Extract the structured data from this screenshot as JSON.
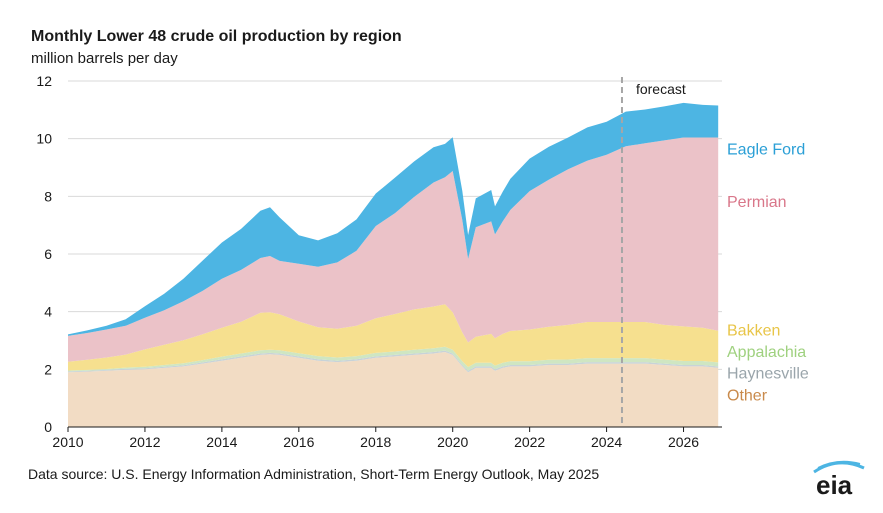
{
  "chart_data": {
    "type": "area",
    "title": "Monthly Lower 48 crude oil production by region",
    "subtitle": "million barrels per day",
    "xlabel": "",
    "ylabel": "",
    "xlim": [
      2010,
      2027
    ],
    "ylim": [
      0,
      12
    ],
    "x_ticks": [
      "2010",
      "2012",
      "2014",
      "2016",
      "2018",
      "2020",
      "2022",
      "2024",
      "2026"
    ],
    "y_ticks": [
      "0",
      "2",
      "4",
      "6",
      "8",
      "10",
      "12"
    ],
    "grid": "horizontal",
    "stacked": true,
    "x": [
      2010.0,
      2010.5,
      2011.0,
      2011.5,
      2012.0,
      2012.5,
      2013.0,
      2013.5,
      2014.0,
      2014.5,
      2015.0,
      2015.25,
      2015.5,
      2016.0,
      2016.5,
      2017.0,
      2017.5,
      2018.0,
      2018.5,
      2019.0,
      2019.5,
      2019.8,
      2020.0,
      2020.25,
      2020.4,
      2020.6,
      2021.0,
      2021.1,
      2021.3,
      2021.5,
      2022.0,
      2022.5,
      2023.0,
      2023.5,
      2024.0,
      2024.5,
      2025.0,
      2025.5,
      2026.0,
      2026.5,
      2026.9
    ],
    "series": [
      {
        "name": "Other",
        "color": "#f2dcc4",
        "values": [
          1.9,
          1.92,
          1.95,
          1.98,
          2.0,
          2.05,
          2.1,
          2.2,
          2.3,
          2.4,
          2.5,
          2.52,
          2.5,
          2.4,
          2.3,
          2.25,
          2.3,
          2.4,
          2.45,
          2.5,
          2.55,
          2.6,
          2.5,
          2.1,
          1.9,
          2.05,
          2.05,
          1.95,
          2.05,
          2.1,
          2.1,
          2.15,
          2.15,
          2.2,
          2.2,
          2.2,
          2.2,
          2.15,
          2.1,
          2.1,
          2.05
        ]
      },
      {
        "name": "Haynesville",
        "color": "#c8d3d8",
        "values": [
          0.03,
          0.03,
          0.03,
          0.04,
          0.04,
          0.04,
          0.04,
          0.04,
          0.05,
          0.05,
          0.05,
          0.05,
          0.05,
          0.05,
          0.05,
          0.05,
          0.05,
          0.05,
          0.05,
          0.05,
          0.05,
          0.05,
          0.05,
          0.05,
          0.05,
          0.05,
          0.05,
          0.05,
          0.05,
          0.05,
          0.05,
          0.05,
          0.05,
          0.05,
          0.05,
          0.05,
          0.05,
          0.05,
          0.05,
          0.05,
          0.05
        ]
      },
      {
        "name": "Appalachia",
        "color": "#cfe6c2",
        "values": [
          0.03,
          0.03,
          0.03,
          0.04,
          0.05,
          0.06,
          0.07,
          0.08,
          0.09,
          0.1,
          0.11,
          0.11,
          0.11,
          0.11,
          0.11,
          0.11,
          0.11,
          0.12,
          0.12,
          0.13,
          0.13,
          0.13,
          0.13,
          0.13,
          0.13,
          0.13,
          0.13,
          0.13,
          0.13,
          0.13,
          0.13,
          0.13,
          0.14,
          0.14,
          0.14,
          0.14,
          0.14,
          0.14,
          0.14,
          0.14,
          0.14
        ]
      },
      {
        "name": "Bakken",
        "color": "#f6e08f",
        "values": [
          0.3,
          0.35,
          0.4,
          0.45,
          0.6,
          0.7,
          0.8,
          0.9,
          1.0,
          1.1,
          1.3,
          1.3,
          1.25,
          1.1,
          1.0,
          1.0,
          1.05,
          1.2,
          1.3,
          1.4,
          1.45,
          1.48,
          1.3,
          1.0,
          0.85,
          0.9,
          1.0,
          0.95,
          1.0,
          1.05,
          1.1,
          1.15,
          1.2,
          1.25,
          1.25,
          1.25,
          1.25,
          1.2,
          1.2,
          1.15,
          1.1
        ]
      },
      {
        "name": "Permian",
        "color": "#ebc2c8",
        "values": [
          0.9,
          0.93,
          0.97,
          1.0,
          1.1,
          1.2,
          1.35,
          1.5,
          1.7,
          1.8,
          1.9,
          1.95,
          1.85,
          2.0,
          2.1,
          2.3,
          2.6,
          3.2,
          3.5,
          3.9,
          4.3,
          4.4,
          4.9,
          3.9,
          2.9,
          3.8,
          3.9,
          3.6,
          3.9,
          4.2,
          4.8,
          5.1,
          5.4,
          5.6,
          5.8,
          6.1,
          6.2,
          6.4,
          6.55,
          6.6,
          6.7
        ]
      },
      {
        "name": "Eagle Ford",
        "color": "#4db5e3",
        "values": [
          0.05,
          0.09,
          0.13,
          0.23,
          0.4,
          0.57,
          0.78,
          1.05,
          1.26,
          1.42,
          1.64,
          1.69,
          1.51,
          0.99,
          0.91,
          1.01,
          1.09,
          1.13,
          1.23,
          1.23,
          1.22,
          1.16,
          1.17,
          1.01,
          0.83,
          1.0,
          1.09,
          0.97,
          1.03,
          1.08,
          1.13,
          1.14,
          1.1,
          1.15,
          1.15,
          1.2,
          1.17,
          1.18,
          1.2,
          1.13,
          1.11
        ]
      }
    ],
    "forecast_start": 2024.4,
    "annotation": "forecast",
    "legend": "right",
    "source": "Data source: U.S. Energy Information Administration, Short-Term Energy Outlook, May 2025",
    "logo_text": "eia"
  }
}
